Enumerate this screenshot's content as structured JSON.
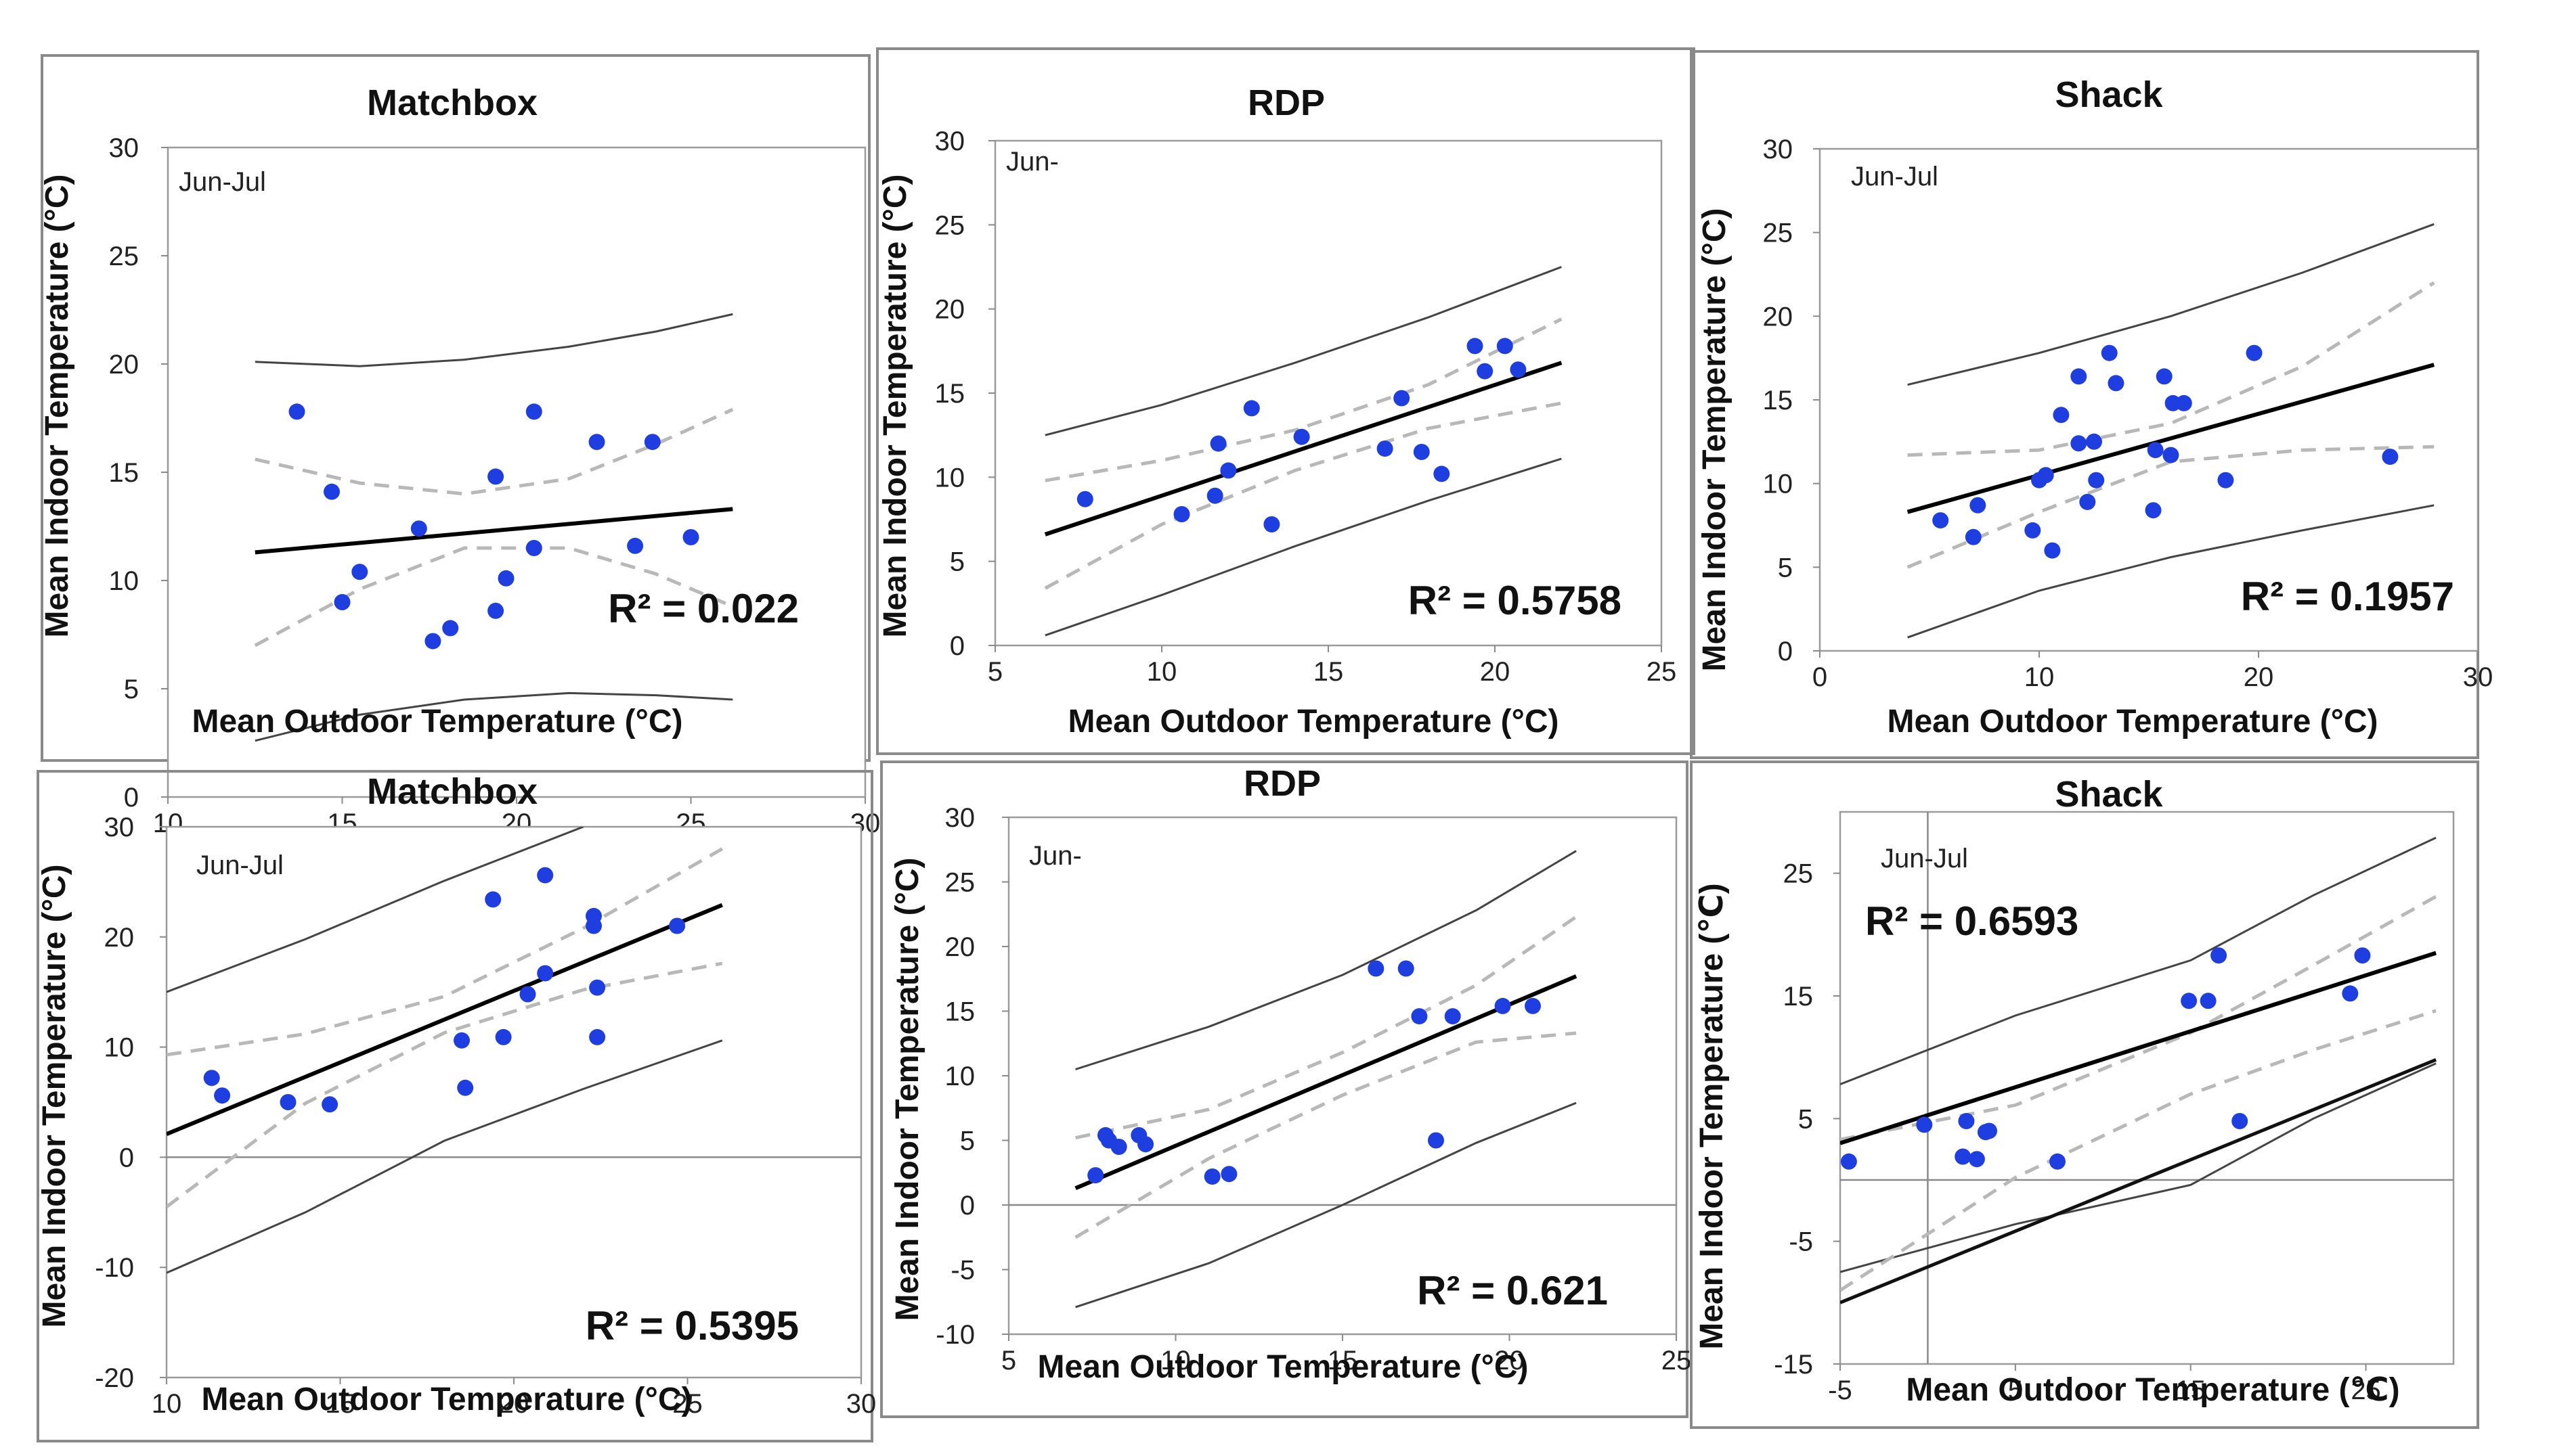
{
  "chart_data": [
    {
      "type": "scatter",
      "title": "Matchbox",
      "period": "Jun-Jul",
      "xlabel": "Mean Outdoor Temperature (°C)",
      "ylabel": "Mean Indoor Temperature (°C)",
      "xlim": [
        10,
        30
      ],
      "ylim": [
        0,
        30
      ],
      "xticks": [
        10,
        15,
        20,
        25,
        30
      ],
      "yticks": [
        0,
        5,
        10,
        15,
        20,
        25,
        30
      ],
      "r2_label": "R² = 0.022",
      "points": [
        [
          13.7,
          17.8
        ],
        [
          14.7,
          14.1
        ],
        [
          15.0,
          9.0
        ],
        [
          15.5,
          10.4
        ],
        [
          17.2,
          12.4
        ],
        [
          17.6,
          7.2
        ],
        [
          18.1,
          7.8
        ],
        [
          19.4,
          14.8
        ],
        [
          19.4,
          8.6
        ],
        [
          19.7,
          10.1
        ],
        [
          20.5,
          17.8
        ],
        [
          20.5,
          11.5
        ],
        [
          22.3,
          16.4
        ],
        [
          23.4,
          11.6
        ],
        [
          23.9,
          16.4
        ],
        [
          25.0,
          12.0
        ]
      ],
      "fit": [
        [
          12.5,
          11.3
        ],
        [
          26.2,
          13.3
        ]
      ],
      "conf_upper": [
        [
          12.5,
          15.6
        ],
        [
          15.5,
          14.5
        ],
        [
          18.5,
          14.0
        ],
        [
          21.5,
          14.7
        ],
        [
          24.0,
          16.3
        ],
        [
          26.2,
          17.9
        ]
      ],
      "conf_lower": [
        [
          12.5,
          7.0
        ],
        [
          15.5,
          9.6
        ],
        [
          18.5,
          11.5
        ],
        [
          21.5,
          11.5
        ],
        [
          24.0,
          10.3
        ],
        [
          26.2,
          8.8
        ]
      ],
      "pred_upper": [
        [
          12.5,
          20.1
        ],
        [
          15.5,
          19.9
        ],
        [
          18.5,
          20.2
        ],
        [
          21.5,
          20.8
        ],
        [
          24.0,
          21.5
        ],
        [
          26.2,
          22.3
        ]
      ],
      "pred_lower": [
        [
          12.5,
          2.6
        ],
        [
          15.5,
          3.8
        ],
        [
          18.5,
          4.5
        ],
        [
          21.5,
          4.8
        ],
        [
          24.0,
          4.7
        ],
        [
          26.2,
          4.5
        ]
      ]
    },
    {
      "type": "scatter",
      "title": "RDP",
      "period": "Jun-",
      "xlabel": "Mean Outdoor Temperature (°C)",
      "ylabel": "Mean Indoor Temperature (°C)",
      "xlim": [
        5,
        25
      ],
      "ylim": [
        0,
        30
      ],
      "xticks": [
        5,
        10,
        15,
        20,
        25
      ],
      "yticks": [
        0,
        5,
        10,
        15,
        20,
        25,
        30
      ],
      "r2_label": "R² = 0.5758",
      "points": [
        [
          7.7,
          8.7
        ],
        [
          10.6,
          7.8
        ],
        [
          11.6,
          8.9
        ],
        [
          11.7,
          12.0
        ],
        [
          12.0,
          10.4
        ],
        [
          12.7,
          14.1
        ],
        [
          13.3,
          7.2
        ],
        [
          14.2,
          12.4
        ],
        [
          16.7,
          11.7
        ],
        [
          17.2,
          14.7
        ],
        [
          17.8,
          11.5
        ],
        [
          18.4,
          10.2
        ],
        [
          19.4,
          17.8
        ],
        [
          19.7,
          16.3
        ],
        [
          20.3,
          17.8
        ],
        [
          20.7,
          16.4
        ]
      ],
      "fit": [
        [
          6.5,
          6.6
        ],
        [
          22.0,
          16.8
        ]
      ],
      "conf_upper": [
        [
          6.5,
          9.8
        ],
        [
          10.0,
          11.0
        ],
        [
          14.0,
          12.8
        ],
        [
          18.0,
          15.5
        ],
        [
          22.0,
          19.4
        ]
      ],
      "conf_lower": [
        [
          6.5,
          3.4
        ],
        [
          10.0,
          7.2
        ],
        [
          14.0,
          10.4
        ],
        [
          18.0,
          12.9
        ],
        [
          22.0,
          14.4
        ]
      ],
      "pred_upper": [
        [
          6.5,
          12.5
        ],
        [
          10.0,
          14.3
        ],
        [
          14.0,
          16.8
        ],
        [
          18.0,
          19.5
        ],
        [
          22.0,
          22.5
        ]
      ],
      "pred_lower": [
        [
          6.5,
          0.6
        ],
        [
          10.0,
          3.0
        ],
        [
          14.0,
          5.9
        ],
        [
          18.0,
          8.6
        ],
        [
          22.0,
          11.1
        ]
      ]
    },
    {
      "type": "scatter",
      "title": "Shack",
      "period": "Jun-Jul",
      "xlabel": "Mean Outdoor Temperature (°C)",
      "ylabel": "Mean Indoor Temperature (°C)",
      "xlim": [
        0,
        30
      ],
      "ylim": [
        0,
        30
      ],
      "xticks": [
        0,
        10,
        20,
        30
      ],
      "yticks": [
        0,
        5,
        10,
        15,
        20,
        25,
        30
      ],
      "r2_label": "R² = 0.1957",
      "points": [
        [
          5.5,
          7.8
        ],
        [
          7.0,
          6.8
        ],
        [
          7.2,
          8.7
        ],
        [
          9.7,
          7.2
        ],
        [
          10.0,
          10.2
        ],
        [
          10.3,
          10.5
        ],
        [
          10.6,
          6.0
        ],
        [
          11.0,
          14.1
        ],
        [
          11.8,
          16.4
        ],
        [
          11.8,
          12.4
        ],
        [
          12.2,
          8.9
        ],
        [
          12.5,
          12.5
        ],
        [
          12.6,
          10.2
        ],
        [
          13.2,
          17.8
        ],
        [
          13.5,
          16.0
        ],
        [
          15.2,
          8.4
        ],
        [
          15.3,
          12.0
        ],
        [
          15.7,
          16.4
        ],
        [
          16.0,
          11.7
        ],
        [
          16.1,
          14.8
        ],
        [
          16.6,
          14.8
        ],
        [
          18.5,
          10.2
        ],
        [
          19.8,
          17.8
        ],
        [
          26.0,
          11.6
        ]
      ],
      "fit": [
        [
          4.0,
          8.3
        ],
        [
          28.0,
          17.1
        ]
      ],
      "conf_upper": [
        [
          4.0,
          11.7
        ],
        [
          10.0,
          12.0
        ],
        [
          16.0,
          13.6
        ],
        [
          22.0,
          17.0
        ],
        [
          28.0,
          22.0
        ]
      ],
      "conf_lower": [
        [
          4.0,
          5.0
        ],
        [
          10.0,
          8.3
        ],
        [
          16.0,
          11.3
        ],
        [
          22.0,
          12.0
        ],
        [
          28.0,
          12.2
        ]
      ],
      "pred_upper": [
        [
          4.0,
          15.9
        ],
        [
          10.0,
          17.8
        ],
        [
          16.0,
          20.0
        ],
        [
          22.0,
          22.6
        ],
        [
          28.0,
          25.5
        ]
      ],
      "pred_lower": [
        [
          4.0,
          0.8
        ],
        [
          10.0,
          3.6
        ],
        [
          16.0,
          5.6
        ],
        [
          22.0,
          7.2
        ],
        [
          28.0,
          8.7
        ]
      ]
    },
    {
      "type": "scatter",
      "title": "Matchbox",
      "period": "Jun-Jul",
      "xlabel": "Mean Outdoor Temperature (°C)",
      "ylabel": "Mean Indoor Temperature (°C)",
      "xlim": [
        10,
        30
      ],
      "ylim": [
        -20,
        30
      ],
      "xticks": [
        10,
        15,
        20,
        25,
        30
      ],
      "yticks": [
        -20,
        -10,
        0,
        10,
        20,
        30
      ],
      "r2_label": "R² = 0.5395",
      "points": [
        [
          11.3,
          7.2
        ],
        [
          11.6,
          5.6
        ],
        [
          13.5,
          5.0
        ],
        [
          14.7,
          4.8
        ],
        [
          18.5,
          10.6
        ],
        [
          18.6,
          6.3
        ],
        [
          19.4,
          23.4
        ],
        [
          19.7,
          10.9
        ],
        [
          20.4,
          14.8
        ],
        [
          20.9,
          25.6
        ],
        [
          20.9,
          16.7
        ],
        [
          22.3,
          21.9
        ],
        [
          22.3,
          21.0
        ],
        [
          22.4,
          15.4
        ],
        [
          22.4,
          10.9
        ],
        [
          24.7,
          21.0
        ]
      ],
      "fit": [
        [
          10.0,
          2.1
        ],
        [
          26.0,
          22.9
        ]
      ],
      "conf_upper": [
        [
          10.0,
          9.3
        ],
        [
          14.0,
          11.2
        ],
        [
          18.0,
          14.6
        ],
        [
          22.0,
          20.8
        ],
        [
          26.0,
          28.0
        ]
      ],
      "conf_lower": [
        [
          10.0,
          -4.5
        ],
        [
          14.0,
          4.9
        ],
        [
          18.0,
          11.3
        ],
        [
          22.0,
          15.2
        ],
        [
          26.0,
          17.6
        ]
      ],
      "pred_upper": [
        [
          10.0,
          15.0
        ],
        [
          14.0,
          19.8
        ],
        [
          18.0,
          25.1
        ],
        [
          22.0,
          30.0
        ]
      ],
      "pred_lower": [
        [
          10.0,
          -10.5
        ],
        [
          14.0,
          -5.0
        ],
        [
          18.0,
          1.5
        ],
        [
          22.0,
          6.2
        ],
        [
          26.0,
          10.6
        ]
      ]
    },
    {
      "type": "scatter",
      "title": "RDP",
      "period": "Jun-",
      "xlabel": "Mean Outdoor Temperature (°C)",
      "ylabel": "Mean Indoor Temperature (°C)",
      "xlim": [
        5,
        25
      ],
      "ylim": [
        -10,
        30
      ],
      "xticks": [
        5,
        10,
        15,
        20,
        25
      ],
      "yticks": [
        -10,
        -5,
        0,
        5,
        10,
        15,
        20,
        25,
        30
      ],
      "r2_label": "R² = 0.621",
      "points": [
        [
          7.6,
          2.3
        ],
        [
          7.9,
          5.4
        ],
        [
          8.0,
          5.0
        ],
        [
          8.3,
          4.5
        ],
        [
          8.9,
          5.4
        ],
        [
          9.1,
          4.7
        ],
        [
          11.1,
          2.2
        ],
        [
          11.6,
          2.4
        ],
        [
          16.0,
          18.3
        ],
        [
          16.9,
          18.3
        ],
        [
          17.3,
          14.6
        ],
        [
          17.8,
          5.0
        ],
        [
          18.3,
          14.6
        ],
        [
          19.8,
          15.4
        ],
        [
          20.7,
          15.4
        ]
      ],
      "fit": [
        [
          7.0,
          1.3
        ],
        [
          22.0,
          17.7
        ]
      ],
      "conf_upper": [
        [
          7.0,
          5.2
        ],
        [
          11.0,
          7.4
        ],
        [
          15.0,
          11.8
        ],
        [
          19.0,
          17.0
        ],
        [
          22.0,
          22.3
        ]
      ],
      "conf_lower": [
        [
          7.0,
          -2.5
        ],
        [
          11.0,
          3.6
        ],
        [
          15.0,
          8.5
        ],
        [
          19.0,
          12.6
        ],
        [
          22.0,
          13.3
        ]
      ],
      "pred_upper": [
        [
          7.0,
          10.5
        ],
        [
          11.0,
          13.8
        ],
        [
          15.0,
          17.8
        ],
        [
          19.0,
          22.8
        ],
        [
          22.0,
          27.4
        ]
      ],
      "pred_lower": [
        [
          7.0,
          -7.9
        ],
        [
          11.0,
          -4.5
        ],
        [
          15.0,
          0.0
        ],
        [
          19.0,
          4.8
        ],
        [
          22.0,
          7.9
        ]
      ]
    },
    {
      "type": "scatter",
      "title": "Shack",
      "period": "Jun-Jul",
      "xlabel": "Mean Outdoor Temperature (℃)",
      "ylabel": "Mean Indoor Temperature (℃)",
      "xlim": [
        -5,
        30
      ],
      "ylim": [
        -15,
        30
      ],
      "xticks": [
        -5,
        5,
        15,
        25
      ],
      "yticks": [
        -15,
        -5,
        5,
        15,
        25
      ],
      "r2_label": "R² = 0.6593",
      "points": [
        [
          -4.5,
          1.5
        ],
        [
          -0.2,
          4.5
        ],
        [
          2.0,
          1.9
        ],
        [
          2.2,
          4.8
        ],
        [
          2.8,
          1.7
        ],
        [
          3.3,
          3.9
        ],
        [
          3.5,
          4.0
        ],
        [
          7.4,
          1.5
        ],
        [
          14.9,
          14.6
        ],
        [
          16.0,
          14.6
        ],
        [
          16.6,
          18.3
        ],
        [
          17.8,
          4.8
        ],
        [
          24.1,
          15.2
        ],
        [
          24.8,
          18.3
        ]
      ],
      "fit": [
        [
          -5.0,
          3.0
        ],
        [
          29.0,
          18.5
        ]
      ],
      "conf_upper": [
        [
          -5.0,
          3.3
        ],
        [
          5.0,
          6.1
        ],
        [
          15.0,
          12.0
        ],
        [
          22.0,
          17.5
        ],
        [
          29.0,
          23.1
        ]
      ],
      "conf_lower": [
        [
          -5.0,
          -9.0
        ],
        [
          5.0,
          0.2
        ],
        [
          15.0,
          7.0
        ],
        [
          22.0,
          10.6
        ],
        [
          29.0,
          13.8
        ]
      ],
      "pred_upper": [
        [
          -5.0,
          7.8
        ],
        [
          5.0,
          13.4
        ],
        [
          15.0,
          17.9
        ],
        [
          22.0,
          23.2
        ],
        [
          29.0,
          27.9
        ]
      ],
      "pred_lower": [
        [
          -5.0,
          -7.5
        ],
        [
          5.0,
          -3.6
        ],
        [
          15.0,
          -0.4
        ],
        [
          22.0,
          5.0
        ],
        [
          29.0,
          9.5
        ]
      ],
      "lower_bold": [
        [
          -5.0,
          -10.0
        ],
        [
          29.0,
          9.8
        ]
      ]
    }
  ]
}
